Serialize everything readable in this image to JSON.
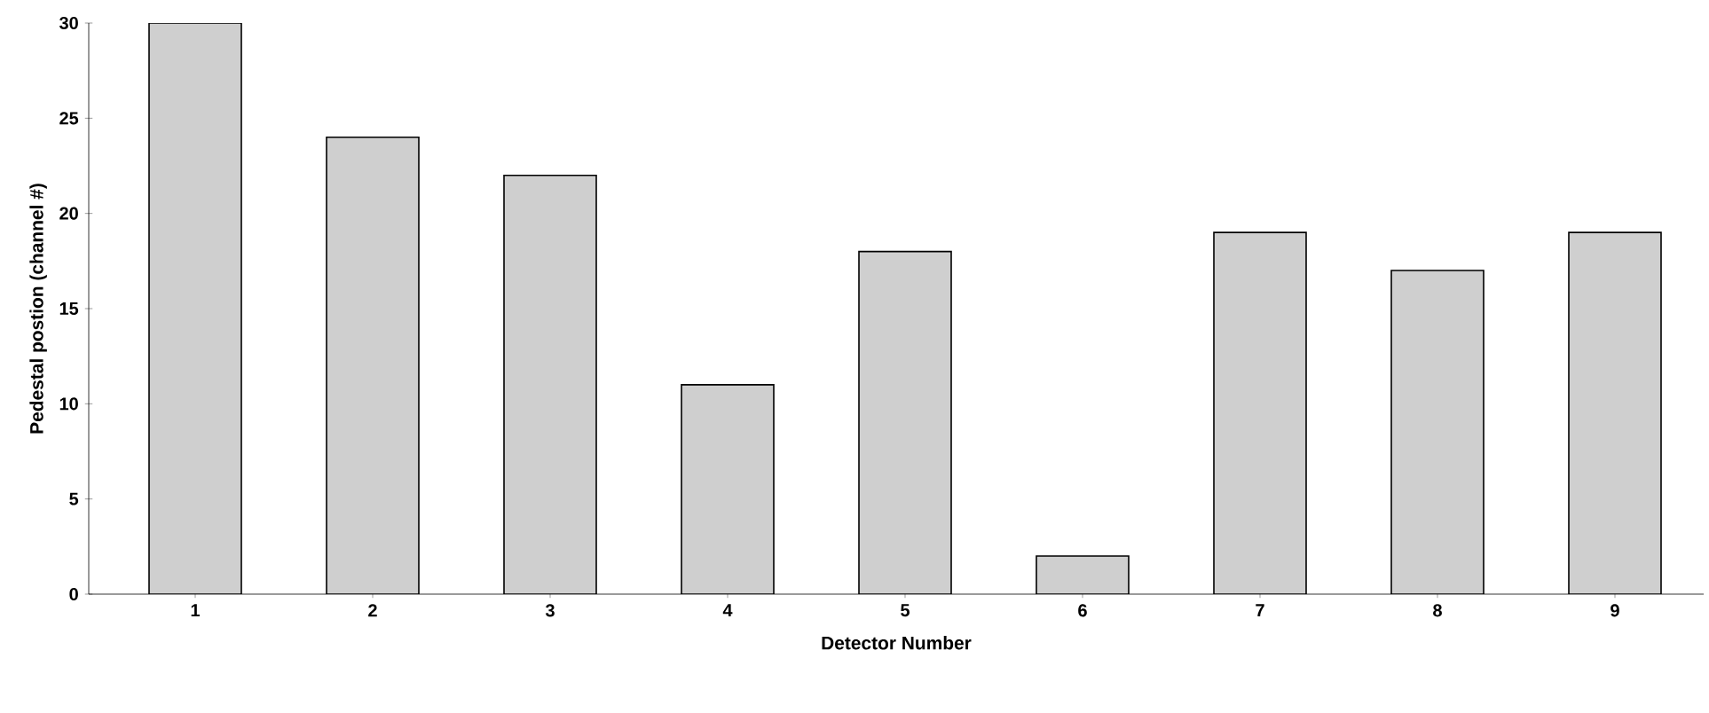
{
  "chart_data": {
    "type": "bar",
    "xlabel": "Detector Number",
    "ylabel": "Pedestal postion (channel #)",
    "categories": [
      "1",
      "2",
      "3",
      "4",
      "5",
      "6",
      "7",
      "8",
      "9"
    ],
    "values": [
      30,
      24,
      22,
      11,
      18,
      2,
      19,
      17,
      19
    ],
    "color": "#cfcfcf",
    "ylim": [
      0,
      30
    ],
    "yticks": [
      0,
      5,
      10,
      15,
      20,
      25,
      30
    ]
  }
}
